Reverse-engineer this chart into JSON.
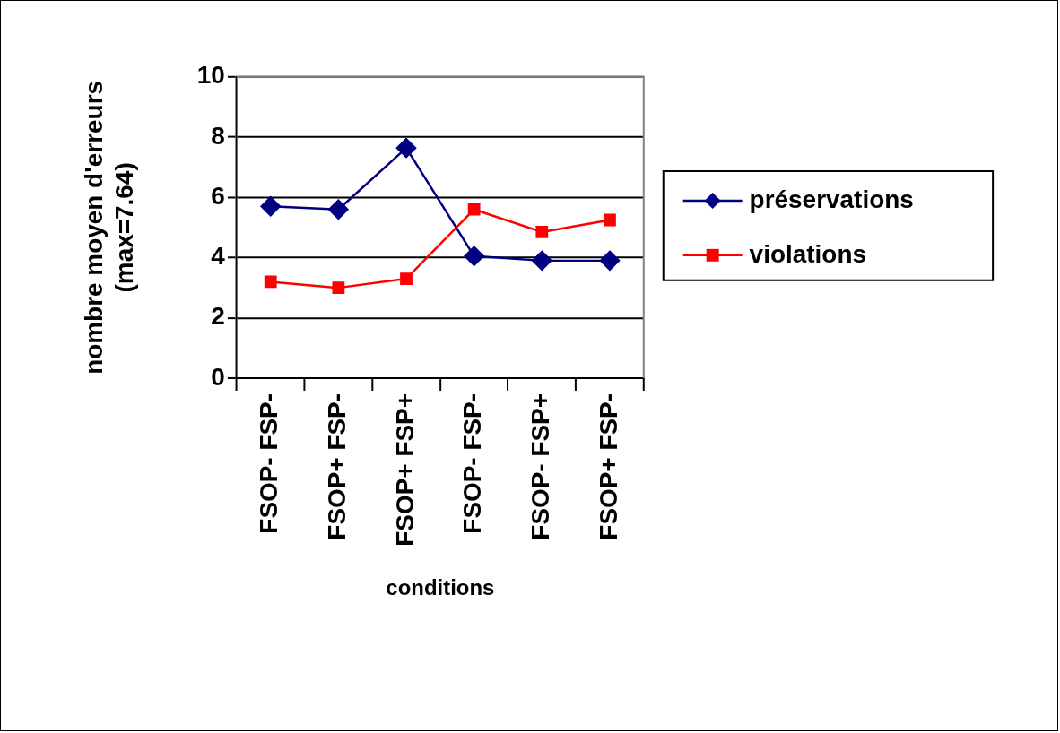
{
  "chart_data": {
    "type": "line",
    "xlabel": "conditions",
    "ylabel": "nombre moyen d'erreurs\n(max=7.64)",
    "categories": [
      "FSOP- FSP-",
      "FSOP+ FSP-",
      "FSOP+ FSP+",
      "FSOP- FSP-",
      "FSOP- FSP+",
      "FSOP+ FSP-"
    ],
    "series": [
      {
        "name": "préservations",
        "color": "#000080",
        "marker": "diamond",
        "values": [
          5.7,
          5.6,
          7.64,
          4.05,
          3.9,
          3.9
        ]
      },
      {
        "name": "violations",
        "color": "#ff0000",
        "marker": "square",
        "values": [
          3.2,
          3.0,
          3.3,
          5.6,
          4.85,
          5.25
        ]
      }
    ],
    "ylim": [
      0,
      10
    ],
    "yticks": [
      0,
      2,
      4,
      6,
      8,
      10
    ],
    "grid": "y",
    "legend": "right",
    "line_style": "solid"
  }
}
